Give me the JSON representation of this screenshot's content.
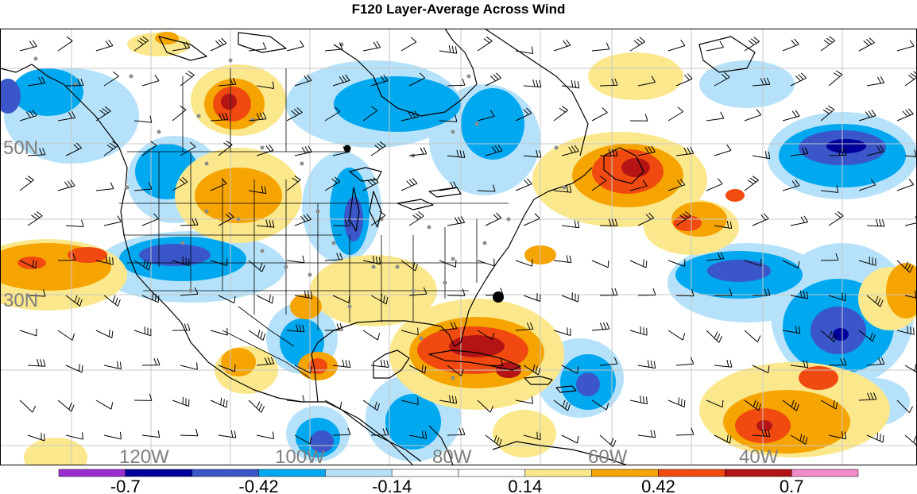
{
  "title": "F120 Layer-Average Across Wind",
  "latitude_labels": [
    "50N",
    "30N"
  ],
  "longitude_labels": [
    "120W",
    "100W",
    "80W",
    "60W",
    "40W"
  ],
  "colorbar": {
    "tick_labels": [
      "-0.7",
      "-0.42",
      "-0.14",
      "0.14",
      "0.42",
      "0.7"
    ],
    "levels": [
      -0.84,
      -0.7,
      -0.56,
      -0.42,
      -0.28,
      -0.14,
      0,
      0.14,
      0.28,
      0.42,
      0.56,
      0.7,
      0.84
    ],
    "colors": [
      "#9a2fd0",
      "#00009c",
      "#3a56c8",
      "#00a8f0",
      "#b5e2fa",
      "#ffffff",
      "#ffffff",
      "#fbe88c",
      "#f5a400",
      "#f04a10",
      "#b41414",
      "#f08cc6"
    ]
  },
  "colors": {
    "coastline": "#000000",
    "grid": "#c8c8c8",
    "barb": "#000000",
    "station_dot": "#8c8c8c",
    "label_gray": "#7f7f7f"
  }
}
